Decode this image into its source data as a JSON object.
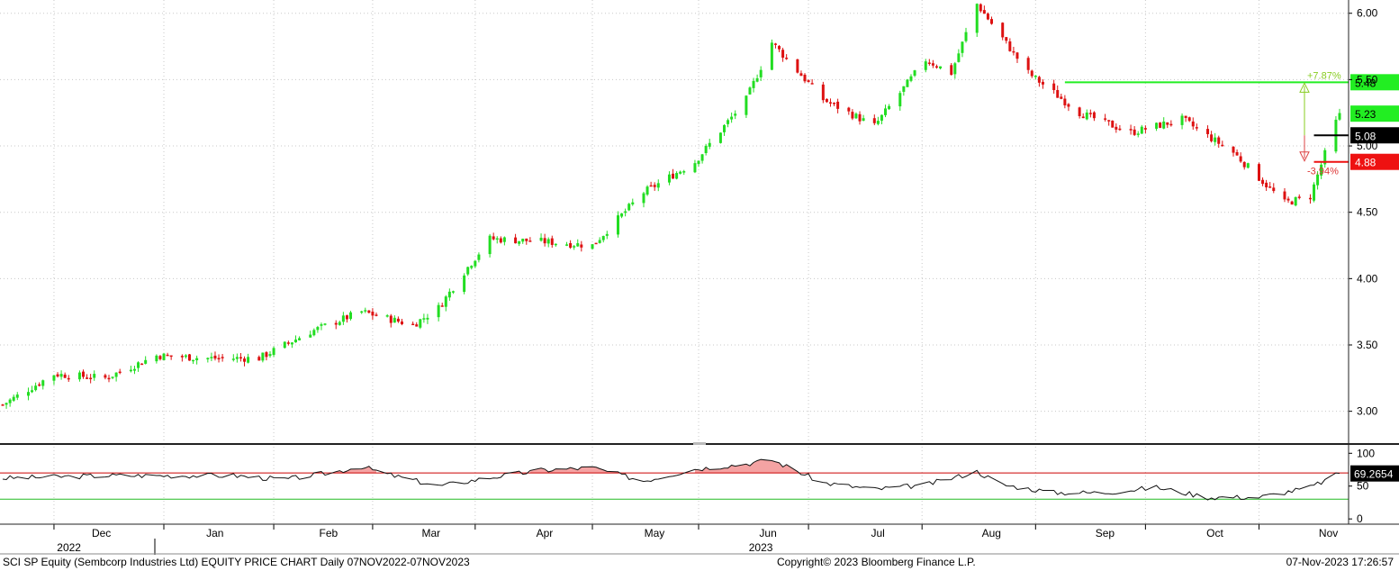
{
  "chart_data": {
    "type": "candlestick",
    "security": "SCI SP Equity (Sembcorp Industries Ltd)",
    "colors": {
      "up": "#22dd22",
      "down": "#dd1111",
      "grid": "#c8c8c8",
      "upper_band": "#cc0000",
      "lower_band": "#22bb22",
      "rsi_line": "#111111",
      "rsi_fill": "#f4a3a3"
    },
    "price_axis": {
      "ticks": [
        "6.00",
        "5.50",
        "5.00",
        "4.50",
        "4.00",
        "3.50",
        "3.00"
      ],
      "ylim": [
        2.76,
        6.1
      ]
    },
    "month_labels": [
      "Dec",
      "Jan",
      "Feb",
      "Mar",
      "Apr",
      "May",
      "Jun",
      "Jul",
      "Aug",
      "Sep",
      "Oct",
      "Nov"
    ],
    "year_labels": [
      "2022",
      "2023"
    ],
    "date_range": [
      "2022-11-07",
      "2023-11-07"
    ],
    "price_series": {
      "dates": [
        "2022-11-07",
        "2022-11-21",
        "2022-12-05",
        "2022-12-19",
        "2023-01-02",
        "2023-01-16",
        "2023-01-30",
        "2023-02-13",
        "2023-02-27",
        "2023-03-06",
        "2023-03-13",
        "2023-03-20",
        "2023-04-03",
        "2023-04-17",
        "2023-05-01",
        "2023-05-15",
        "2023-05-29",
        "2023-06-05",
        "2023-06-19",
        "2023-07-03",
        "2023-07-17",
        "2023-07-24",
        "2023-07-31",
        "2023-08-14",
        "2023-08-28",
        "2023-09-11",
        "2023-09-25",
        "2023-10-09",
        "2023-10-23",
        "2023-10-30",
        "2023-11-06",
        "2023-11-07"
      ],
      "close": [
        3.05,
        3.28,
        3.25,
        3.42,
        3.4,
        3.4,
        3.6,
        3.75,
        3.65,
        3.78,
        4.05,
        4.3,
        4.28,
        4.25,
        4.65,
        4.88,
        5.35,
        5.78,
        5.35,
        5.15,
        5.65,
        5.55,
        6.07,
        5.55,
        5.25,
        5.1,
        5.2,
        4.95,
        4.57,
        4.62,
        5.18,
        5.23
      ]
    },
    "annotations": {
      "last_price": "5.23",
      "reference_price": "5.08",
      "resistance": {
        "value": "5.48",
        "pct": "+7.87%"
      },
      "support": {
        "value": "4.88",
        "pct": "-3.94%"
      }
    },
    "rsi": {
      "ticks": [
        "100",
        "50",
        "0"
      ],
      "ylim": [
        -8,
        110
      ],
      "upper_band": 70,
      "lower_band": 30,
      "last_value": "69.2654",
      "dates": [
        "2022-11-07",
        "2022-12-05",
        "2023-01-09",
        "2023-01-23",
        "2023-02-06",
        "2023-02-13",
        "2023-02-20",
        "2023-03-06",
        "2023-03-20",
        "2023-04-03",
        "2023-04-17",
        "2023-05-01",
        "2023-05-15",
        "2023-05-29",
        "2023-06-05",
        "2023-06-19",
        "2023-07-03",
        "2023-07-17",
        "2023-07-31",
        "2023-08-07",
        "2023-08-21",
        "2023-09-04",
        "2023-09-18",
        "2023-10-02",
        "2023-10-16",
        "2023-10-30",
        "2023-11-07"
      ],
      "values": [
        62,
        66,
        66,
        60,
        72,
        80,
        68,
        50,
        63,
        74,
        78,
        58,
        76,
        84,
        90,
        55,
        45,
        52,
        72,
        52,
        40,
        40,
        48,
        33,
        33,
        48,
        69
      ]
    }
  },
  "footer": {
    "title": "SCI SP Equity (Sembcorp Industries Ltd) EQUITY PRICE CHART  Daily 07NOV2022-07NOV2023",
    "copyright": "Copyright© 2023 Bloomberg Finance L.P.",
    "timestamp": "07-Nov-2023 17:26:57"
  }
}
